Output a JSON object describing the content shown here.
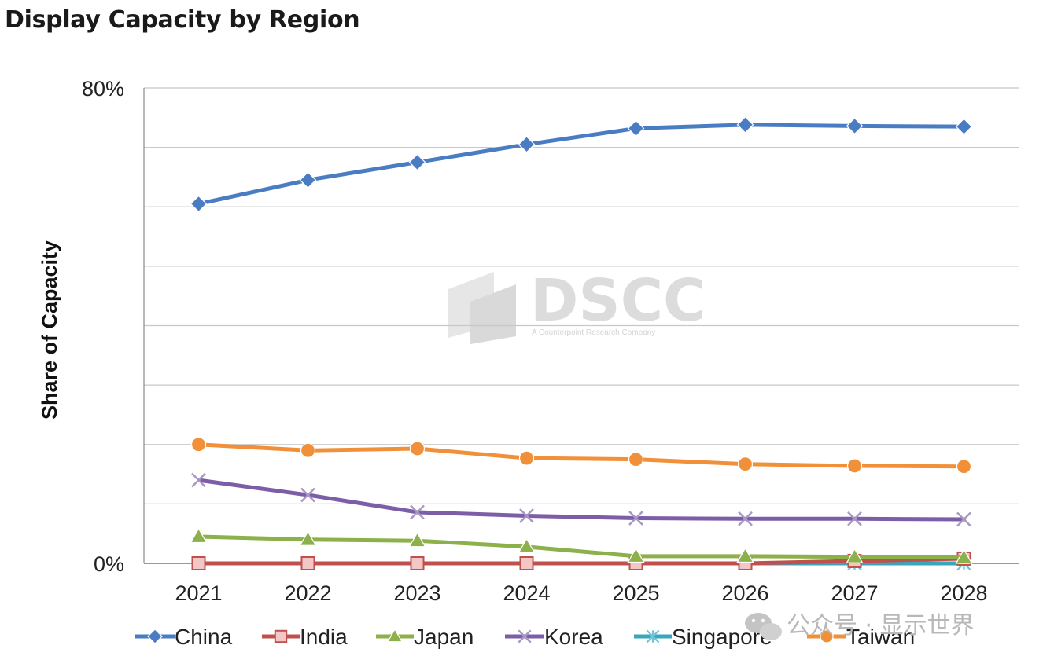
{
  "page": {
    "title": "Display Capacity by Region"
  },
  "watermark": {
    "text": "DSCC",
    "tagline": "A Counterpoint Research Company"
  },
  "brand": {
    "text": "公众号 · 显示世界"
  },
  "chart_data": {
    "type": "line",
    "title": "",
    "xlabel": "",
    "ylabel": "Share of Capacity",
    "categories": [
      "2021",
      "2022",
      "2023",
      "2024",
      "2025",
      "2026",
      "2027",
      "2028"
    ],
    "ylim": [
      0,
      80
    ],
    "y_tick_labels": [
      "0%",
      "80%"
    ],
    "y_gridline_step": 10,
    "grid": true,
    "legend_position": "bottom",
    "series": [
      {
        "name": "China",
        "values": [
          60.5,
          64.5,
          67.5,
          70.5,
          73.2,
          73.8,
          73.6,
          73.5
        ],
        "color": "#4a7cc4",
        "marker": "diamond"
      },
      {
        "name": "India",
        "values": [
          0,
          0,
          0,
          0,
          0,
          0,
          0.4,
          0.8
        ],
        "color": "#c0504d",
        "marker": "square"
      },
      {
        "name": "Japan",
        "values": [
          4.5,
          4.0,
          3.8,
          2.8,
          1.2,
          1.2,
          1.1,
          1.0
        ],
        "color": "#8cb04a",
        "marker": "triangle"
      },
      {
        "name": "Korea",
        "values": [
          14.0,
          11.5,
          8.6,
          8.0,
          7.6,
          7.5,
          7.5,
          7.4
        ],
        "color": "#7b5ea7",
        "marker": "x"
      },
      {
        "name": "Singapore",
        "values": [
          0,
          0,
          0,
          0,
          0,
          0,
          0,
          0
        ],
        "color": "#3aa6b9",
        "marker": "star"
      },
      {
        "name": "Taiwan",
        "values": [
          20.0,
          19.0,
          19.3,
          17.7,
          17.5,
          16.7,
          16.4,
          16.3
        ],
        "color": "#f0913a",
        "marker": "circle"
      }
    ]
  }
}
